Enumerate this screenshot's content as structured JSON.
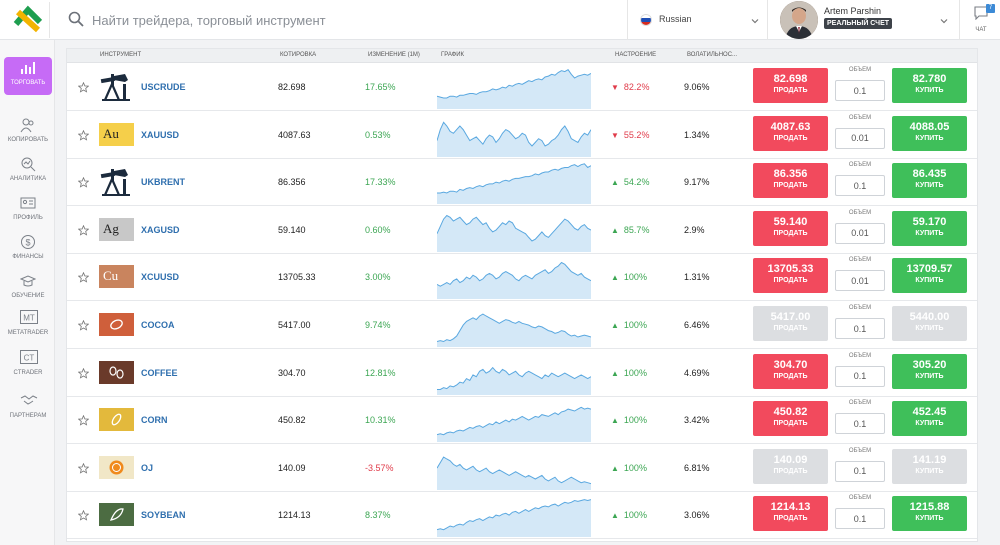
{
  "search": {
    "placeholder": "Найти трейдера, торговый инструмент"
  },
  "language": {
    "selected": "Russian"
  },
  "user": {
    "name": "Artem Parshin",
    "account_badge": "РЕАЛЬНЫЙ СЧЕТ"
  },
  "chat": {
    "label": "ЧАТ",
    "badge": "7"
  },
  "sidebar": {
    "items": [
      {
        "label": "ТОРГОВАТЬ",
        "icon": "chart-icon",
        "active": true
      },
      {
        "label": "КОПИРОВАТЬ",
        "icon": "people-icon"
      },
      {
        "label": "АНАЛИТИКА",
        "icon": "analytics-icon"
      },
      {
        "label": "ПРОФИЛЬ",
        "icon": "profile-card-icon"
      },
      {
        "label": "ФИНАНСЫ",
        "icon": "dollar-icon"
      },
      {
        "label": "ОБУЧЕНИЕ",
        "icon": "graduation-cap-icon"
      },
      {
        "label": "METATRADER",
        "icon": "mt-icon"
      },
      {
        "label": "CTRADER",
        "icon": "ct-icon"
      },
      {
        "label": "ПАРТНЕРАМ",
        "icon": "handshake-icon"
      }
    ]
  },
  "table": {
    "columns": {
      "instrument": "ИНСТРУМЕНТ",
      "quote": "КОТИРОВКА",
      "change": "ИЗМЕНЕНИЕ (1М)",
      "chart": "ГРАФИК",
      "sentiment": "НАСТРОЕНИЕ",
      "volatility": "ВОЛАТИЛЬНОС..."
    },
    "sell_label": "ПРОДАТЬ",
    "buy_label": "КУПИТЬ",
    "volume_label": "ОБЪЕМ",
    "rows": [
      {
        "symbol": "USCRUDE",
        "icon": "oil-pump-icon",
        "quote": "82.698",
        "change": "17.65%",
        "change_dir": "up",
        "sentiment": "82.2%",
        "sent_dir": "down",
        "volatility": "9.06%",
        "sell": "82.698",
        "buy": "82.780",
        "volume": "0.1",
        "active": true,
        "spark": [
          14,
          13,
          12,
          12,
          14,
          14,
          13,
          15,
          15,
          16,
          17,
          17,
          16,
          18,
          19,
          19,
          20,
          22,
          21,
          22,
          24,
          23,
          26,
          25,
          27,
          28,
          27,
          29,
          31,
          30,
          32,
          33,
          32,
          35,
          36,
          38,
          37,
          40,
          42,
          41,
          43,
          38,
          34,
          36,
          37,
          38,
          37,
          39
        ]
      },
      {
        "symbol": "XAUUSD",
        "icon": "gold-au-icon",
        "icon_label": "Au",
        "quote": "4087.63",
        "change": "0.53%",
        "change_dir": "up",
        "sentiment": "55.2%",
        "sent_dir": "down",
        "volatility": "1.34%",
        "sell": "4087.63",
        "buy": "4088.05",
        "volume": "0.01",
        "active": true,
        "spark": [
          18,
          30,
          38,
          34,
          28,
          26,
          30,
          34,
          30,
          24,
          18,
          20,
          22,
          18,
          14,
          20,
          24,
          22,
          16,
          20,
          26,
          30,
          28,
          24,
          20,
          22,
          26,
          24,
          16,
          12,
          16,
          20,
          18,
          12,
          14,
          18,
          20,
          24,
          30,
          34,
          28,
          20,
          18,
          16,
          22,
          26,
          24,
          30
        ]
      },
      {
        "symbol": "UKBRENT",
        "icon": "oil-pump-icon",
        "quote": "86.356",
        "change": "17.33%",
        "change_dir": "up",
        "sentiment": "54.2%",
        "sent_dir": "up",
        "volatility": "9.17%",
        "sell": "86.356",
        "buy": "86.435",
        "volume": "0.1",
        "active": true,
        "spark": [
          12,
          12,
          13,
          12,
          14,
          14,
          13,
          16,
          15,
          17,
          18,
          17,
          19,
          20,
          19,
          21,
          22,
          22,
          24,
          23,
          25,
          26,
          25,
          27,
          28,
          28,
          29,
          30,
          30,
          31,
          33,
          32,
          34,
          35,
          35,
          37,
          38,
          37,
          39,
          40,
          40,
          42,
          43,
          41,
          43,
          44,
          40,
          42
        ]
      },
      {
        "symbol": "XAGUSD",
        "icon": "silver-ag-icon",
        "icon_label": "Ag",
        "quote": "59.140",
        "change": "0.60%",
        "change_dir": "up",
        "sentiment": "85.7%",
        "sent_dir": "up",
        "volatility": "2.9%",
        "sell": "59.140",
        "buy": "59.170",
        "volume": "0.01",
        "active": true,
        "spark": [
          20,
          28,
          36,
          40,
          38,
          34,
          36,
          38,
          34,
          30,
          32,
          36,
          38,
          34,
          30,
          32,
          26,
          22,
          24,
          28,
          32,
          30,
          34,
          32,
          26,
          24,
          22,
          20,
          16,
          12,
          14,
          18,
          22,
          18,
          16,
          20,
          24,
          28,
          32,
          36,
          34,
          30,
          26,
          24,
          28,
          30,
          26,
          24
        ]
      },
      {
        "symbol": "XCUUSD",
        "icon": "copper-cu-icon",
        "icon_label": "Cu",
        "quote": "13705.33",
        "change": "3.00%",
        "change_dir": "up",
        "sentiment": "100%",
        "sent_dir": "up",
        "volatility": "1.31%",
        "sell": "13705.33",
        "buy": "13709.57",
        "volume": "0.01",
        "active": true,
        "spark": [
          16,
          14,
          16,
          18,
          16,
          20,
          22,
          18,
          20,
          24,
          22,
          26,
          24,
          20,
          22,
          26,
          28,
          26,
          22,
          24,
          28,
          30,
          28,
          26,
          22,
          20,
          24,
          26,
          24,
          22,
          26,
          28,
          30,
          32,
          28,
          30,
          34,
          36,
          40,
          38,
          34,
          30,
          28,
          26,
          28,
          24,
          22,
          20
        ]
      },
      {
        "symbol": "COCOA",
        "icon": "cocoa-bean-icon",
        "quote": "5417.00",
        "change": "9.74%",
        "change_dir": "up",
        "sentiment": "100%",
        "sent_dir": "up",
        "volatility": "6.46%",
        "sell": "5417.00",
        "buy": "5440.00",
        "volume": "0.1",
        "active": false,
        "spark": [
          6,
          7,
          6,
          8,
          7,
          9,
          12,
          18,
          24,
          28,
          30,
          32,
          30,
          34,
          36,
          34,
          32,
          30,
          28,
          26,
          28,
          30,
          29,
          27,
          26,
          28,
          26,
          25,
          24,
          22,
          21,
          23,
          22,
          20,
          18,
          17,
          15,
          16,
          18,
          17,
          14,
          12,
          13,
          11,
          12,
          13,
          12,
          11
        ]
      },
      {
        "symbol": "COFFEE",
        "icon": "coffee-bean-icon",
        "quote": "304.70",
        "change": "12.81%",
        "change_dir": "up",
        "sentiment": "100%",
        "sent_dir": "up",
        "volatility": "4.69%",
        "sell": "304.70",
        "buy": "305.20",
        "volume": "0.1",
        "active": true,
        "spark": [
          6,
          6,
          8,
          7,
          10,
          9,
          11,
          14,
          13,
          18,
          16,
          22,
          20,
          26,
          28,
          24,
          26,
          30,
          26,
          24,
          28,
          26,
          22,
          24,
          26,
          22,
          20,
          24,
          26,
          24,
          22,
          20,
          18,
          22,
          20,
          24,
          22,
          20,
          22,
          24,
          22,
          20,
          18,
          20,
          22,
          20,
          18,
          20
        ]
      },
      {
        "symbol": "CORN",
        "icon": "corn-icon",
        "quote": "450.82",
        "change": "10.31%",
        "change_dir": "up",
        "sentiment": "100%",
        "sent_dir": "up",
        "volatility": "3.42%",
        "sell": "450.82",
        "buy": "452.45",
        "volume": "0.1",
        "active": true,
        "spark": [
          8,
          9,
          8,
          10,
          11,
          10,
          12,
          13,
          12,
          14,
          16,
          15,
          17,
          18,
          16,
          18,
          20,
          19,
          22,
          20,
          22,
          24,
          22,
          25,
          24,
          26,
          28,
          26,
          24,
          26,
          28,
          27,
          30,
          29,
          28,
          30,
          32,
          30,
          33,
          34,
          36,
          35,
          34,
          36,
          38,
          36,
          37,
          36
        ]
      },
      {
        "symbol": "OJ",
        "icon": "orange-icon",
        "quote": "140.09",
        "change": "-3.57%",
        "change_dir": "down",
        "sentiment": "100%",
        "sent_dir": "up",
        "volatility": "6.81%",
        "sell": "140.09",
        "buy": "141.19",
        "volume": "0.1",
        "active": false,
        "spark": [
          24,
          30,
          36,
          34,
          32,
          28,
          26,
          28,
          24,
          22,
          24,
          26,
          22,
          20,
          22,
          24,
          20,
          18,
          20,
          22,
          20,
          18,
          16,
          18,
          20,
          18,
          16,
          14,
          16,
          14,
          12,
          14,
          16,
          12,
          10,
          12,
          14,
          10,
          8,
          10,
          12,
          14,
          12,
          10,
          8,
          9,
          8,
          7
        ]
      },
      {
        "symbol": "SOYBEAN",
        "icon": "soybean-icon",
        "quote": "1214.13",
        "change": "8.37%",
        "change_dir": "up",
        "sentiment": "100%",
        "sent_dir": "up",
        "volatility": "3.06%",
        "sell": "1214.13",
        "buy": "1215.88",
        "volume": "0.1",
        "active": true,
        "spark": [
          8,
          9,
          8,
          10,
          12,
          11,
          13,
          14,
          13,
          16,
          18,
          17,
          19,
          20,
          18,
          20,
          22,
          21,
          24,
          23,
          25,
          26,
          24,
          27,
          28,
          26,
          28,
          30,
          28,
          30,
          32,
          31,
          33,
          34,
          33,
          35,
          36,
          34,
          36,
          38,
          37,
          38,
          40,
          39,
          40,
          41,
          40,
          41
        ]
      }
    ]
  },
  "colors": {
    "sell": "#f24a5d",
    "buy": "#3fbf5a",
    "disabled": "#dcdee1",
    "up": "#3ca653",
    "down": "#e03b4a",
    "link": "#2f6fae",
    "chart_fill": "#d4e8f7",
    "chart_line": "#5aa8e0",
    "active_nav": "#c66bf6"
  }
}
